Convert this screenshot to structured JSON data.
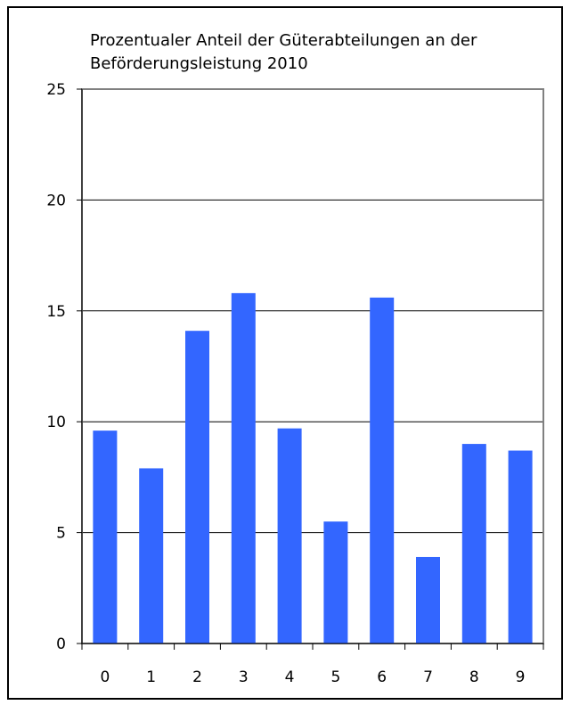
{
  "chart_data": {
    "type": "bar",
    "title": "Prozentualer Anteil der Güterabteilungen an der Beförderungsleistung 2010",
    "categories": [
      "0",
      "1",
      "2",
      "3",
      "4",
      "5",
      "6",
      "7",
      "8",
      "9"
    ],
    "values": [
      9.6,
      7.9,
      14.1,
      15.8,
      9.7,
      5.5,
      15.6,
      3.9,
      9.0,
      8.7
    ],
    "xlabel": "",
    "ylabel": "",
    "ylim": [
      0,
      25
    ],
    "yticks": [
      "0",
      "5",
      "10",
      "15",
      "20",
      "25"
    ],
    "grid": true,
    "legend": "none",
    "bar_color": "#3366ff",
    "grid_color": "#000000",
    "plot_border_color": "#808080"
  }
}
